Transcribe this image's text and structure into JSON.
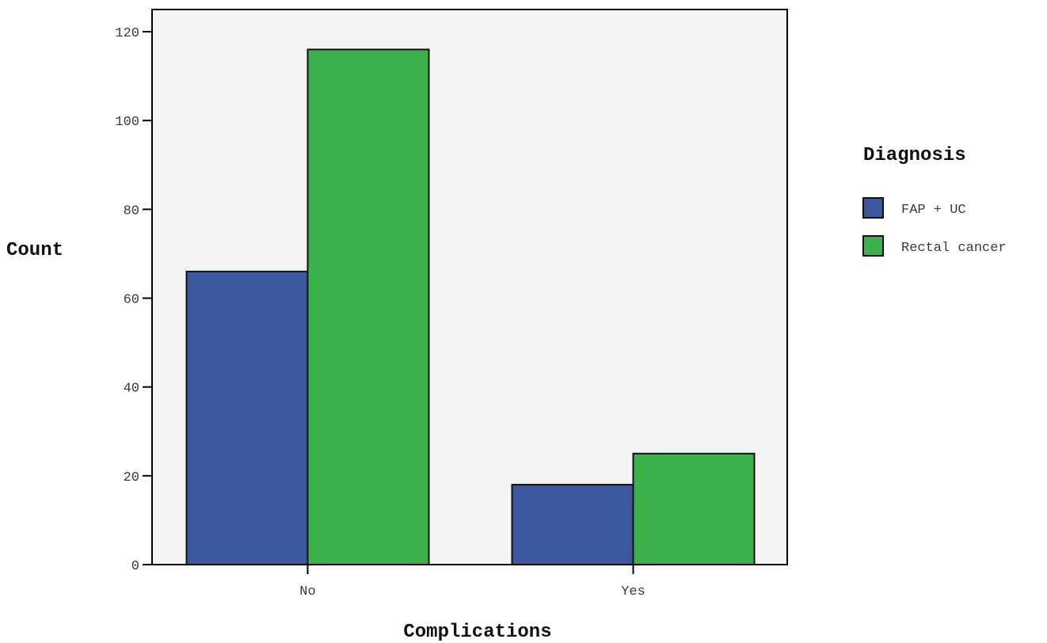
{
  "chart_data": {
    "type": "bar",
    "categories": [
      "No",
      "Yes"
    ],
    "series": [
      {
        "name": "FAP + UC",
        "values": [
          66,
          18
        ],
        "color": "#3b57a0"
      },
      {
        "name": "Rectal cancer",
        "values": [
          116,
          25
        ],
        "color": "#3cb14c"
      }
    ],
    "xlabel": "Complications",
    "ylabel": "Count",
    "ylim": [
      0,
      125
    ],
    "yticks": [
      0,
      20,
      40,
      60,
      80,
      100,
      120
    ],
    "legend_title": "Diagnosis",
    "legend_position": "right",
    "grid": false,
    "plot_background": "#f3f3f3"
  }
}
